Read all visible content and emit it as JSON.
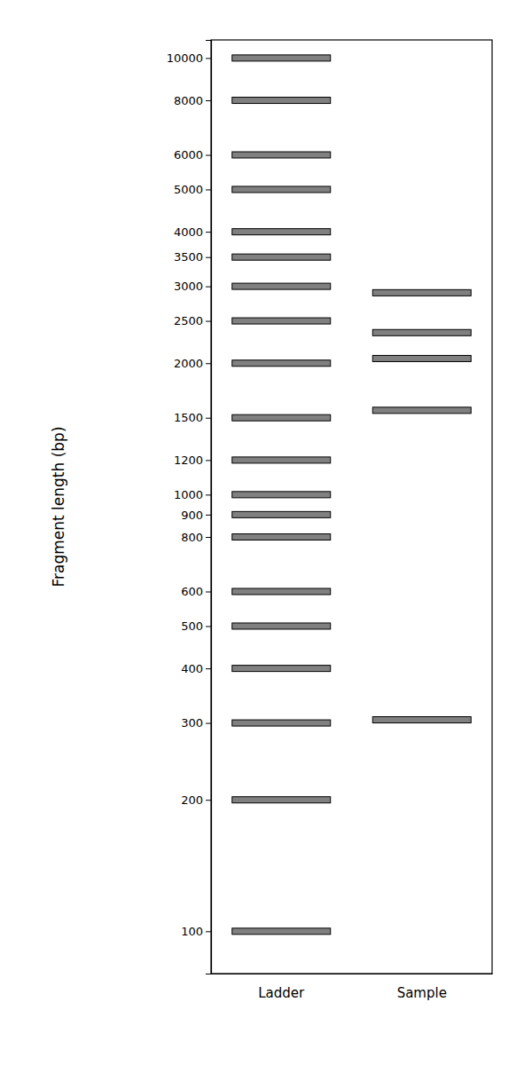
{
  "chart_data": {
    "type": "gel",
    "y_label": "Fragment length (bp)",
    "categories": [
      "Ladder",
      "Sample"
    ],
    "bands": [
      [
        100,
        200,
        300,
        400,
        500,
        600,
        800,
        900,
        1000,
        1200,
        1500,
        2000,
        2500,
        3000,
        3500,
        4000,
        5000,
        6000,
        8000,
        10000
      ],
      [
        305,
        1560,
        2050,
        2350,
        2900
      ]
    ],
    "color": "#808080",
    "log": "y",
    "ylim": [
      80,
      11000
    ],
    "yticks": [
      100,
      200,
      300,
      400,
      500,
      600,
      800,
      900,
      1000,
      1200,
      1500,
      2000,
      2500,
      3000,
      3500,
      4000,
      5000,
      6000,
      8000,
      10000
    ],
    "grid": false
  }
}
